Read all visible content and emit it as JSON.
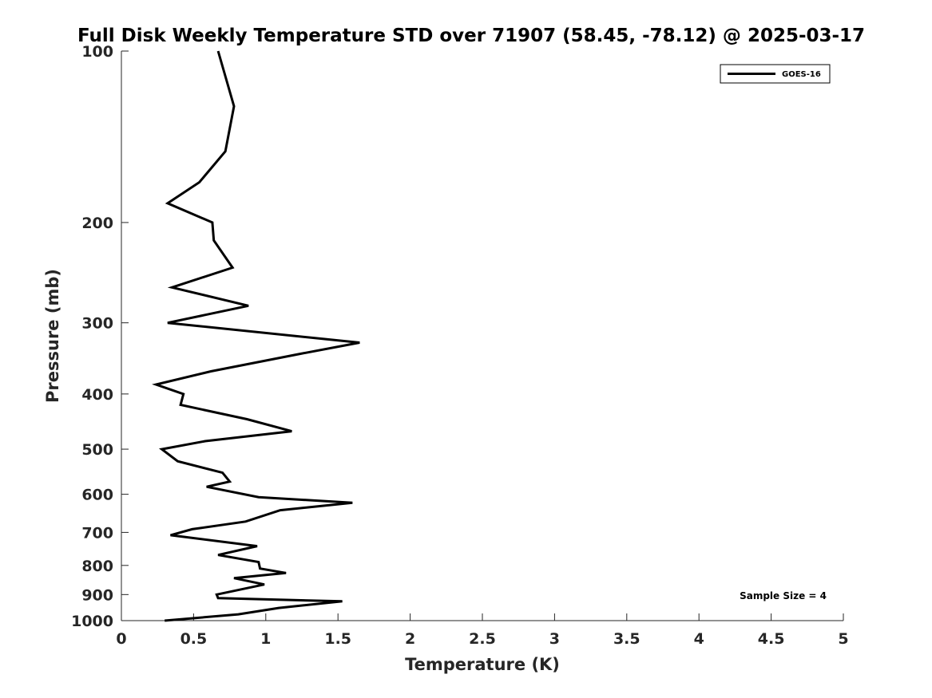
{
  "chart_data": {
    "type": "line",
    "title": "Full Disk Weekly Temperature STD over 71907 (58.45, -78.12) @ 2025-03-17",
    "xlabel": "Temperature (K)",
    "ylabel": "Pressure (mb)",
    "xlim": [
      0,
      5
    ],
    "ylim": [
      1000,
      100
    ],
    "yscale": "log",
    "xticks": [
      0,
      0.5,
      1,
      1.5,
      2,
      2.5,
      3,
      3.5,
      4,
      4.5,
      5
    ],
    "xtick_labels": [
      "0",
      "0.5",
      "1",
      "1.5",
      "2",
      "2.5",
      "3",
      "3.5",
      "4",
      "4.5",
      "5"
    ],
    "yticks": [
      100,
      200,
      300,
      400,
      500,
      600,
      700,
      800,
      900,
      1000
    ],
    "ytick_labels": [
      "100",
      "200",
      "300",
      "400",
      "500",
      "600",
      "700",
      "800",
      "900",
      "1000"
    ],
    "grid": false,
    "legend": {
      "placement": "top-right",
      "entries": [
        "GOES-16"
      ]
    },
    "annotation": "Sample Size = 4",
    "series": [
      {
        "name": "GOES-16",
        "color": "#000000",
        "points": [
          [
            0.67,
            100
          ],
          [
            0.78,
            125
          ],
          [
            0.72,
            150
          ],
          [
            0.54,
            170
          ],
          [
            0.32,
            185
          ],
          [
            0.63,
            200
          ],
          [
            0.64,
            215
          ],
          [
            0.77,
            240
          ],
          [
            0.35,
            260
          ],
          [
            0.88,
            280
          ],
          [
            0.32,
            300
          ],
          [
            1.65,
            325
          ],
          [
            1.24,
            340
          ],
          [
            0.62,
            365
          ],
          [
            0.24,
            385
          ],
          [
            0.43,
            400
          ],
          [
            0.41,
            418
          ],
          [
            0.87,
            443
          ],
          [
            1.18,
            465
          ],
          [
            0.58,
            484
          ],
          [
            0.28,
            500
          ],
          [
            0.39,
            525
          ],
          [
            0.7,
            550
          ],
          [
            0.75,
            570
          ],
          [
            0.59,
            582
          ],
          [
            0.95,
            607
          ],
          [
            1.6,
            621
          ],
          [
            1.1,
            640
          ],
          [
            0.86,
            670
          ],
          [
            0.49,
            691
          ],
          [
            0.34,
            708
          ],
          [
            0.94,
            740
          ],
          [
            0.67,
            767
          ],
          [
            0.95,
            789
          ],
          [
            0.96,
            810
          ],
          [
            1.14,
            825
          ],
          [
            0.78,
            842
          ],
          [
            0.99,
            864
          ],
          [
            0.66,
            900
          ],
          [
            0.67,
            913
          ],
          [
            1.53,
            925
          ],
          [
            1.09,
            950
          ],
          [
            0.81,
            975
          ],
          [
            0.3,
            1000
          ]
        ]
      }
    ]
  }
}
